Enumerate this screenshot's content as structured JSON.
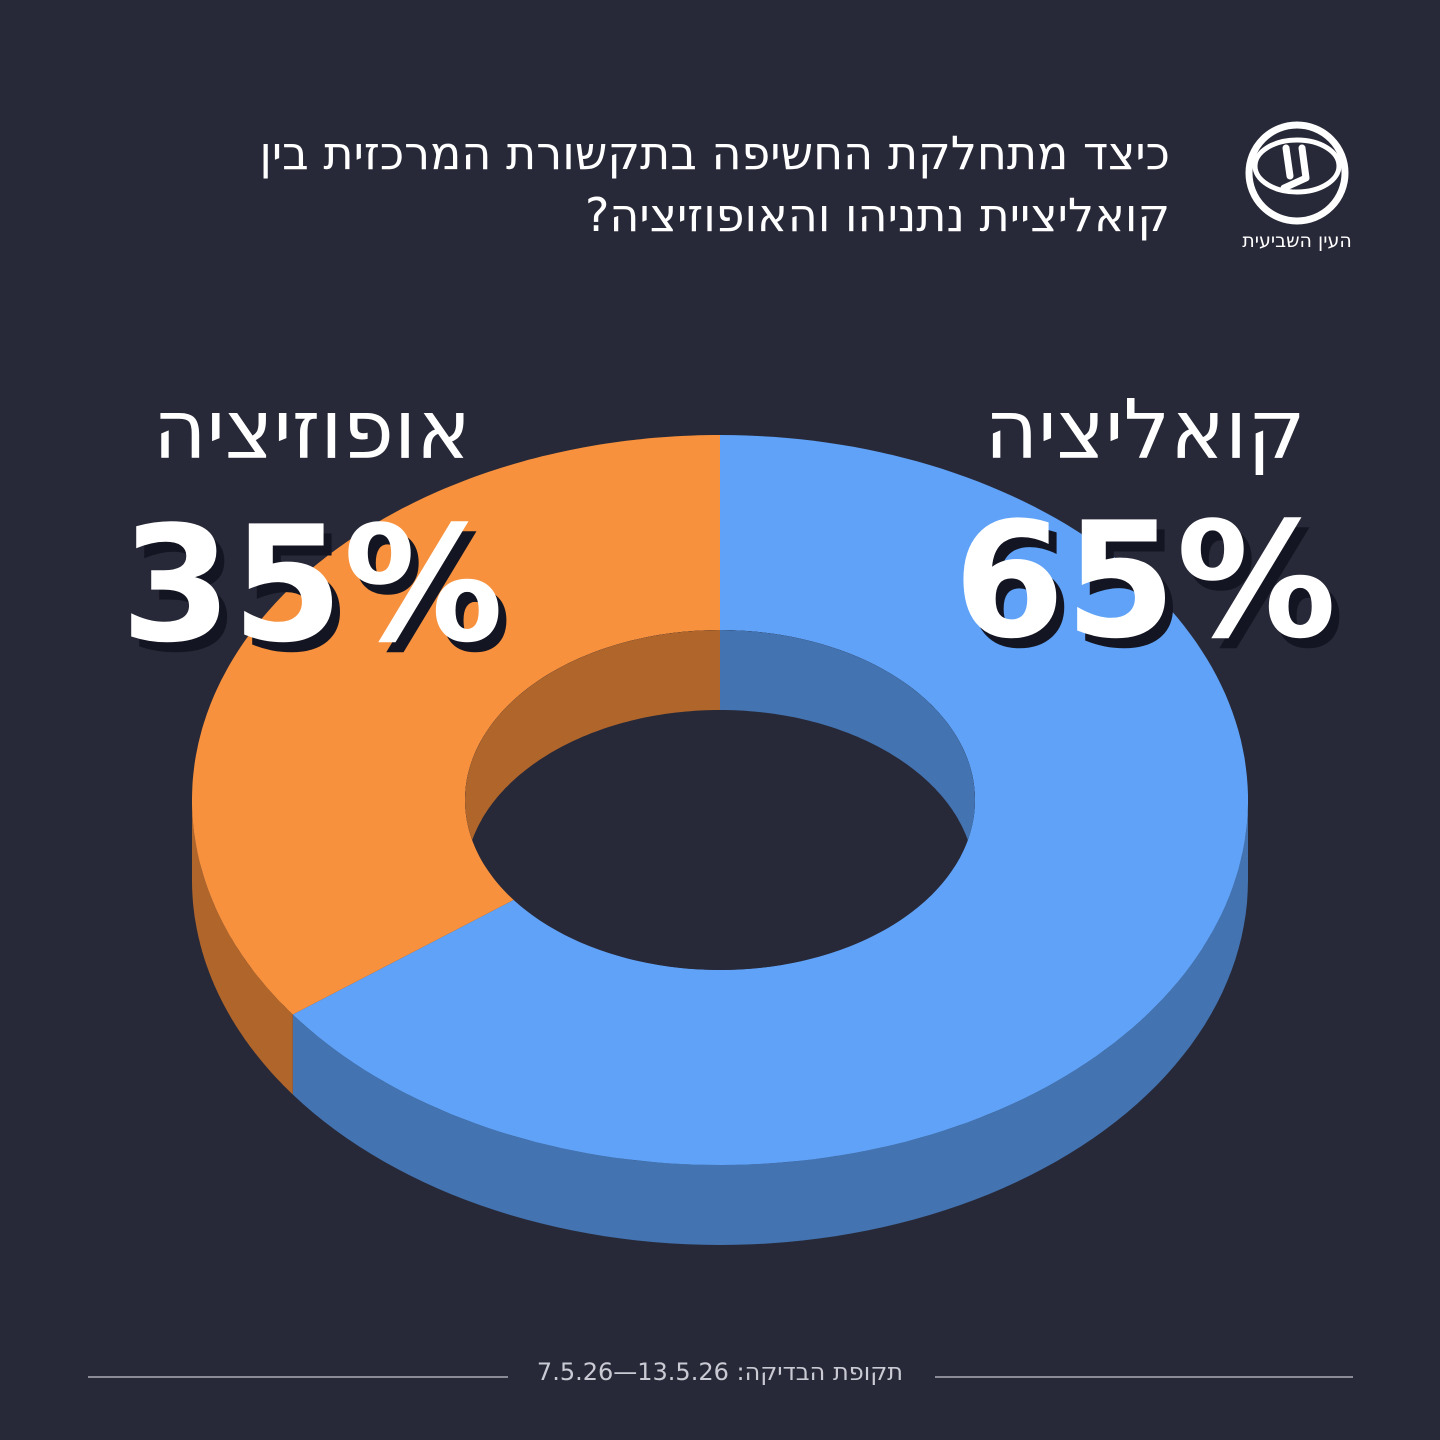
{
  "title_lines": [
    "כיצד מתחלקת החשיפה בתקשורת המרכזית בין",
    "קואליציית נתניהו והאופוזיציה?"
  ],
  "logo": {
    "caption": "העין השביעית"
  },
  "footer": {
    "label": "תקופת הבדיקה:",
    "range": "7.5.26—13.5.26"
  },
  "colors": {
    "background": "#282938",
    "coalition": "#5fa2f7",
    "coalition_side": "#4373b0",
    "opposition": "#f7913d",
    "opposition_side": "#b0652b"
  },
  "chart_data": {
    "type": "pie",
    "style": "3d-donut",
    "slices": [
      {
        "label": "קואליציה",
        "value": 65,
        "value_label": "65%"
      },
      {
        "label": "אופוזיציה",
        "value": 35,
        "value_label": "35%"
      }
    ]
  }
}
